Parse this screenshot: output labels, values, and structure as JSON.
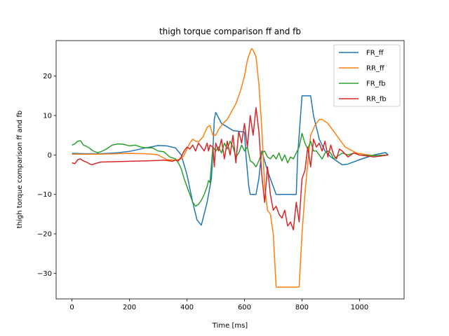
{
  "chart_data": {
    "type": "line",
    "title": "thigh torque comparison ff and fb",
    "xlabel": "Time [ms]",
    "ylabel": "thigh torque comparison ff and fb",
    "xlim": [
      -55,
      1155
    ],
    "ylim": [
      -36.5,
      29
    ],
    "xticks": [
      0,
      200,
      400,
      600,
      800,
      1000
    ],
    "yticks": [
      -30,
      -20,
      -10,
      0,
      10,
      20
    ],
    "grid": false,
    "legend_position": "top-right",
    "series": [
      {
        "name": "FR_ff",
        "color": "#1f77b4",
        "x": [
          0,
          50,
          100,
          150,
          200,
          250,
          300,
          330,
          360,
          380,
          400,
          420,
          435,
          450,
          470,
          485,
          490,
          495,
          500,
          520,
          560,
          600,
          605,
          615,
          620,
          630,
          640,
          650,
          660,
          680,
          700,
          710,
          720,
          740,
          760,
          780,
          785,
          795,
          800,
          820,
          830,
          840,
          860,
          880,
          900,
          920,
          940,
          960,
          1000,
          1050,
          1090,
          1100
        ],
        "y": [
          0.4,
          0.3,
          0.3,
          0.5,
          0.9,
          1.7,
          2.4,
          2.3,
          1.8,
          0,
          -5,
          -12,
          -16.5,
          -17.8,
          -12,
          -6,
          1,
          9,
          10.8,
          8,
          6.2,
          5.8,
          0,
          -8,
          -10,
          -10,
          -10,
          -6,
          1,
          -4,
          -8,
          -10,
          -10,
          -10,
          -10,
          -10,
          0,
          10,
          15,
          15,
          15,
          10,
          4,
          1,
          -0.5,
          -1.5,
          -2.5,
          -2.3,
          -1.2,
          0,
          0.6,
          0
        ]
      },
      {
        "name": "RR_ff",
        "color": "#ff7f0e",
        "x": [
          0,
          50,
          100,
          150,
          200,
          250,
          280,
          300,
          330,
          360,
          380,
          390,
          400,
          410,
          420,
          430,
          440,
          455,
          470,
          480,
          490,
          500,
          510,
          525,
          540,
          555,
          570,
          585,
          600,
          610,
          620,
          625,
          630,
          640,
          650,
          660,
          670,
          680,
          690,
          700,
          710,
          740,
          770,
          790,
          800,
          810,
          820,
          830,
          845,
          860,
          870,
          890,
          910,
          930,
          950,
          990,
          1050,
          1100
        ],
        "y": [
          0.2,
          0.2,
          0.2,
          0.3,
          0.4,
          0.3,
          0.2,
          0,
          -1.2,
          -1.3,
          -1,
          0,
          1.5,
          3,
          4,
          3.5,
          3.3,
          4.5,
          7,
          7.5,
          5,
          5,
          6.5,
          8,
          9,
          11,
          13,
          16,
          20,
          24,
          26.2,
          27,
          26.5,
          25,
          18,
          7,
          -8,
          -14,
          -15,
          -20,
          -33.5,
          -33.5,
          -33.5,
          -33.5,
          -20,
          -10,
          -2,
          5,
          7.5,
          9,
          9,
          8,
          6,
          4,
          2,
          0.5,
          -0.2,
          0
        ]
      },
      {
        "name": "FR_fb",
        "color": "#2ca02c",
        "x": [
          0,
          10,
          20,
          30,
          40,
          50,
          60,
          70,
          80,
          90,
          100,
          120,
          140,
          160,
          180,
          200,
          220,
          240,
          260,
          280,
          300,
          320,
          340,
          360,
          370,
          380,
          390,
          400,
          410,
          420,
          430,
          440,
          450,
          460,
          470,
          475,
          480,
          490,
          500,
          510,
          520,
          530,
          540,
          550,
          560,
          570,
          580,
          590,
          600,
          610,
          620,
          630,
          640,
          650,
          660,
          670,
          680,
          690,
          700,
          710,
          720,
          730,
          740,
          750,
          760,
          770,
          780,
          790,
          800,
          810,
          820,
          830,
          840,
          850,
          860,
          870,
          880,
          890,
          900,
          910,
          920,
          930,
          940,
          960,
          980,
          1000,
          1050,
          1100
        ],
        "y": [
          2.5,
          2.8,
          3.5,
          3.6,
          2.5,
          2.2,
          1.8,
          1.2,
          0.8,
          0.6,
          0.8,
          1.5,
          2.5,
          2.8,
          2.7,
          2.3,
          2.5,
          2.0,
          1.8,
          1.8,
          1.0,
          0.8,
          -0.5,
          -1.0,
          -2.0,
          -3.5,
          -6.0,
          -8.0,
          -10.0,
          -12.0,
          -13.0,
          -12.5,
          -11.5,
          -10.0,
          -8.0,
          -6.5,
          -7.0,
          2.0,
          1.0,
          2.0,
          0.5,
          3.0,
          1.5,
          3.5,
          2.0,
          -0.5,
          0.5,
          2.5,
          1.0,
          2.0,
          -1.5,
          -2.0,
          -3.0,
          -1.5,
          0.5,
          1.0,
          -0.5,
          -1.0,
          0,
          -1.0,
          0.5,
          -1.5,
          0,
          -2.0,
          -0.5,
          -1.0,
          0.5,
          2.0,
          5.5,
          3.0,
          1.5,
          3.5,
          1.0,
          1.0,
          0,
          -1.0,
          0.5,
          1.0,
          0.5,
          -1.0,
          -0.5,
          0,
          0.5,
          0,
          0.5,
          0,
          -0.2,
          0
        ]
      },
      {
        "name": "RR_fb",
        "color": "#d62728",
        "x": [
          0,
          10,
          20,
          30,
          40,
          50,
          60,
          70,
          80,
          90,
          100,
          150,
          200,
          250,
          300,
          320,
          340,
          350,
          360,
          370,
          380,
          390,
          400,
          410,
          420,
          430,
          440,
          450,
          460,
          470,
          475,
          480,
          490,
          495,
          500,
          510,
          520,
          530,
          540,
          550,
          560,
          570,
          580,
          590,
          600,
          610,
          620,
          630,
          640,
          650,
          660,
          670,
          680,
          690,
          700,
          710,
          720,
          730,
          740,
          750,
          760,
          770,
          780,
          790,
          800,
          810,
          820,
          830,
          840,
          850,
          860,
          870,
          880,
          890,
          900,
          910,
          920,
          930,
          940,
          960,
          980,
          1000,
          1050,
          1100
        ],
        "y": [
          -2.0,
          -2.2,
          -1.2,
          -1.0,
          -1.5,
          -1.8,
          -2.2,
          -2.5,
          -2.2,
          -2.0,
          -1.8,
          -1.7,
          -1.6,
          -1.5,
          -1.4,
          -1.3,
          -1.5,
          -1.6,
          -1.3,
          -1.5,
          -0.5,
          1.0,
          2.0,
          1.5,
          2.5,
          1.0,
          3.0,
          2.0,
          1.0,
          3.0,
          1.0,
          2.5,
          2.0,
          -3.0,
          3.0,
          1.0,
          4.0,
          -1.0,
          3.5,
          0,
          5.0,
          -2.0,
          6.0,
          3.0,
          8.0,
          2.0,
          10.0,
          5.0,
          12.0,
          6.0,
          -5.0,
          -12.0,
          -3.0,
          -10.0,
          -14.0,
          -13.0,
          -15.0,
          -16.0,
          -14.0,
          -18.0,
          -17.0,
          -19.0,
          -12.0,
          -17.0,
          -6.0,
          -4.0,
          2.0,
          -3.0,
          4.0,
          2.0,
          3.0,
          1.0,
          3.5,
          -0.5,
          2.5,
          0,
          -1.0,
          1.5,
          1.0,
          -0.5,
          0.5,
          0,
          -0.5,
          0
        ]
      }
    ]
  }
}
